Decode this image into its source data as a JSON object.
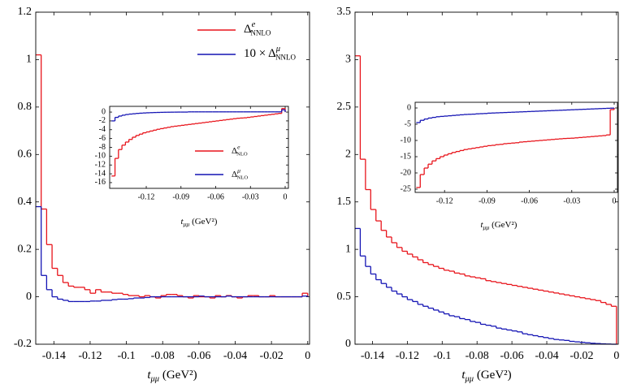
{
  "chart_data": [
    {
      "type": "histogram",
      "xlabel": "tμμ (GeV²)",
      "legend": "upper right",
      "xlim": [
        -0.15,
        0.001
      ],
      "ylim": [
        -0.2,
        1.2
      ],
      "xticks": [
        -0.14,
        -0.12,
        -0.1,
        -0.08,
        -0.06,
        -0.04,
        -0.02,
        0
      ],
      "yticks": [
        1.2,
        1,
        0.8,
        0.6,
        0.4,
        0.2,
        0,
        -0.2
      ],
      "bins": [
        -0.15,
        -0.147,
        -0.144,
        -0.141,
        -0.138,
        -0.135,
        -0.132,
        -0.129,
        -0.126,
        -0.123,
        -0.12,
        -0.117,
        -0.114,
        -0.111,
        -0.108,
        -0.105,
        -0.102,
        -0.099,
        -0.096,
        -0.093,
        -0.09,
        -0.087,
        -0.084,
        -0.081,
        -0.078,
        -0.075,
        -0.072,
        -0.069,
        -0.066,
        -0.063,
        -0.06,
        -0.057,
        -0.054,
        -0.051,
        -0.048,
        -0.045,
        -0.042,
        -0.039,
        -0.036,
        -0.033,
        -0.03,
        -0.027,
        -0.024,
        -0.021,
        -0.018,
        -0.015,
        -0.012,
        -0.009,
        -0.006,
        -0.003,
        0
      ],
      "series": [
        {
          "name": "ΔeNNLO",
          "color": "#e8141b",
          "values": [
            1.02,
            0.37,
            0.22,
            0.12,
            0.09,
            0.06,
            0.045,
            0.04,
            0.04,
            0.03,
            0.015,
            0.03,
            0.02,
            0.02,
            0.015,
            0.015,
            0.01,
            0.005,
            0.005,
            0,
            0.005,
            0,
            -0.005,
            0.005,
            0.01,
            0.01,
            0.005,
            0,
            -0.005,
            0.005,
            0,
            0,
            -0.005,
            0.005,
            0,
            0.005,
            0,
            -0.005,
            0,
            0.005,
            0.005,
            0,
            0,
            0.005,
            0,
            0,
            0,
            0,
            0,
            0.015
          ]
        },
        {
          "name": "10 × ΔμNNLO",
          "color": "#1414b4",
          "values": [
            0.38,
            0.09,
            0.03,
            0,
            -0.01,
            -0.015,
            -0.02,
            -0.02,
            -0.02,
            -0.02,
            -0.018,
            -0.018,
            -0.015,
            -0.015,
            -0.012,
            -0.01,
            -0.01,
            -0.008,
            -0.005,
            -0.005,
            -0.003,
            0,
            0,
            0,
            0,
            0,
            0,
            0,
            0,
            0,
            0.003,
            0,
            0,
            0,
            0,
            0.003,
            0,
            0,
            0,
            0,
            0,
            0,
            0,
            0,
            0,
            0,
            0,
            0,
            0,
            0.003
          ]
        }
      ]
    },
    {
      "type": "histogram",
      "xlabel": "tμμ (GeV²)",
      "legend": "lower right",
      "xlim": [
        -0.1516,
        0.0028
      ],
      "ylim": [
        -17.3,
        1.3
      ],
      "xticks": [
        -0.12,
        -0.09,
        -0.06,
        -0.03,
        0
      ],
      "yticks": [
        0,
        -2,
        -4,
        -6,
        -8,
        -10,
        -12,
        -14,
        -16
      ],
      "bins": [
        -0.15,
        -0.147,
        -0.144,
        -0.141,
        -0.138,
        -0.135,
        -0.132,
        -0.129,
        -0.126,
        -0.123,
        -0.12,
        -0.117,
        -0.114,
        -0.111,
        -0.108,
        -0.105,
        -0.102,
        -0.099,
        -0.096,
        -0.093,
        -0.09,
        -0.087,
        -0.084,
        -0.081,
        -0.078,
        -0.075,
        -0.072,
        -0.069,
        -0.066,
        -0.063,
        -0.06,
        -0.057,
        -0.054,
        -0.051,
        -0.048,
        -0.045,
        -0.042,
        -0.039,
        -0.036,
        -0.033,
        -0.03,
        -0.027,
        -0.024,
        -0.021,
        -0.018,
        -0.015,
        -0.012,
        -0.009,
        -0.006,
        -0.003,
        0
      ],
      "series": [
        {
          "name": "ΔeNLO",
          "color": "#e8141b",
          "values": [
            -14.5,
            -10.5,
            -8.5,
            -7.5,
            -6.8,
            -6.2,
            -5.7,
            -5.3,
            -5,
            -4.7,
            -4.5,
            -4.3,
            -4.1,
            -3.9,
            -3.75,
            -3.6,
            -3.45,
            -3.3,
            -3.2,
            -3.1,
            -3,
            -2.9,
            -2.8,
            -2.7,
            -2.6,
            -2.5,
            -2.4,
            -2.3,
            -2.2,
            -2.1,
            -2,
            -1.9,
            -1.8,
            -1.7,
            -1.6,
            -1.5,
            -1.4,
            -1.35,
            -1.3,
            -1.2,
            -1.1,
            -1,
            -0.9,
            -0.8,
            -0.7,
            -0.6,
            -0.5,
            -0.4,
            -0.3,
            0.8
          ]
        },
        {
          "name": "ΔμNLO",
          "color": "#1414b4",
          "values": [
            -2,
            -1.2,
            -0.9,
            -0.7,
            -0.55,
            -0.45,
            -0.38,
            -0.3,
            -0.25,
            -0.2,
            -0.16,
            -0.13,
            -0.1,
            -0.08,
            -0.06,
            -0.04,
            -0.03,
            -0.02,
            -0.01,
            0,
            0,
            0,
            0.05,
            0.05,
            0.05,
            0.05,
            0.05,
            0.05,
            0.05,
            0.05,
            0.05,
            0.05,
            0.05,
            0.05,
            0.05,
            0.05,
            0.05,
            0.05,
            0.05,
            0.05,
            0.05,
            0.05,
            0.05,
            0.05,
            0.05,
            0.05,
            0.05,
            0.05,
            0.05,
            0.5
          ]
        }
      ]
    },
    {
      "type": "histogram",
      "xlabel": "tμμ (GeV²)",
      "xlim": [
        -0.15,
        0.001
      ],
      "ylim": [
        0,
        3.5
      ],
      "xticks": [
        -0.14,
        -0.12,
        -0.1,
        -0.08,
        -0.06,
        -0.04,
        -0.02,
        0
      ],
      "yticks": [
        3.5,
        3,
        2.5,
        2,
        1.5,
        1,
        0.5,
        0
      ],
      "bins": [
        -0.15,
        -0.147,
        -0.144,
        -0.141,
        -0.138,
        -0.135,
        -0.132,
        -0.129,
        -0.126,
        -0.123,
        -0.12,
        -0.117,
        -0.114,
        -0.111,
        -0.108,
        -0.105,
        -0.102,
        -0.099,
        -0.096,
        -0.093,
        -0.09,
        -0.087,
        -0.084,
        -0.081,
        -0.078,
        -0.075,
        -0.072,
        -0.069,
        -0.066,
        -0.063,
        -0.06,
        -0.057,
        -0.054,
        -0.051,
        -0.048,
        -0.045,
        -0.042,
        -0.039,
        -0.036,
        -0.033,
        -0.03,
        -0.027,
        -0.024,
        -0.021,
        -0.018,
        -0.015,
        -0.012,
        -0.009,
        -0.006,
        -0.003,
        0
      ],
      "series": [
        {
          "color": "#e8141b",
          "values": [
            3.04,
            1.95,
            1.63,
            1.42,
            1.3,
            1.2,
            1.13,
            1.07,
            1.02,
            0.98,
            0.95,
            0.92,
            0.89,
            0.86,
            0.84,
            0.82,
            0.8,
            0.78,
            0.77,
            0.75,
            0.74,
            0.72,
            0.71,
            0.7,
            0.69,
            0.67,
            0.66,
            0.65,
            0.64,
            0.63,
            0.62,
            0.61,
            0.6,
            0.59,
            0.58,
            0.57,
            0.56,
            0.55,
            0.54,
            0.53,
            0.52,
            0.51,
            0.5,
            0.49,
            0.48,
            0.47,
            0.46,
            0.44,
            0.42,
            0.4
          ]
        },
        {
          "color": "#1414b4",
          "values": [
            1.22,
            0.93,
            0.82,
            0.74,
            0.68,
            0.64,
            0.6,
            0.56,
            0.53,
            0.5,
            0.47,
            0.45,
            0.42,
            0.4,
            0.38,
            0.36,
            0.34,
            0.32,
            0.3,
            0.29,
            0.27,
            0.26,
            0.24,
            0.23,
            0.21,
            0.2,
            0.19,
            0.17,
            0.16,
            0.15,
            0.14,
            0.13,
            0.11,
            0.1,
            0.09,
            0.08,
            0.07,
            0.06,
            0.05,
            0.045,
            0.04,
            0.03,
            0.025,
            0.02,
            0.015,
            0.01,
            0.007,
            0.004,
            0.002,
            0
          ]
        }
      ]
    },
    {
      "type": "histogram",
      "xlabel": "tμμ (GeV²)",
      "xlim": [
        -0.1408,
        0.0023
      ],
      "ylim": [
        -26,
        1.75
      ],
      "xticks": [
        -0.12,
        -0.09,
        -0.06,
        -0.03,
        0
      ],
      "yticks": [
        0,
        -5,
        -10,
        -15,
        -20,
        -25
      ],
      "bins": [
        -0.14,
        -0.1372,
        -0.1344,
        -0.1316,
        -0.1288,
        -0.126,
        -0.1232,
        -0.1204,
        -0.1176,
        -0.1148,
        -0.112,
        -0.1092,
        -0.1064,
        -0.1036,
        -0.1008,
        -0.098,
        -0.0952,
        -0.0924,
        -0.0896,
        -0.0868,
        -0.084,
        -0.0812,
        -0.0784,
        -0.0756,
        -0.0728,
        -0.07,
        -0.0672,
        -0.0644,
        -0.0616,
        -0.0588,
        -0.056,
        -0.0532,
        -0.0504,
        -0.0476,
        -0.0448,
        -0.042,
        -0.0392,
        -0.0364,
        -0.0336,
        -0.0308,
        -0.028,
        -0.0252,
        -0.0224,
        -0.0196,
        -0.0168,
        -0.014,
        -0.0112,
        -0.0084,
        -0.0056,
        -0.0028,
        0
      ],
      "series": [
        {
          "color": "#e8141b",
          "values": [
            -24.5,
            -20.5,
            -18.5,
            -17.3,
            -16.3,
            -15.6,
            -15,
            -14.5,
            -14.1,
            -13.7,
            -13.4,
            -13.1,
            -12.8,
            -12.6,
            -12.4,
            -12.2,
            -12,
            -11.8,
            -11.6,
            -11.5,
            -11.3,
            -11.2,
            -11,
            -10.9,
            -10.8,
            -10.7,
            -10.5,
            -10.4,
            -10.3,
            -10.2,
            -10.1,
            -10,
            -9.9,
            -9.8,
            -9.7,
            -9.6,
            -9.5,
            -9.4,
            -9.35,
            -9.3,
            -9.2,
            -9.1,
            -9,
            -8.9,
            -8.8,
            -8.7,
            -8.6,
            -8.5,
            -8.3,
            -0.5
          ]
        },
        {
          "color": "#1414b4",
          "values": [
            -4.5,
            -3.8,
            -3.4,
            -3.1,
            -2.9,
            -2.7,
            -2.6,
            -2.5,
            -2.4,
            -2.3,
            -2.2,
            -2.1,
            -2,
            -1.95,
            -1.9,
            -1.8,
            -1.75,
            -1.7,
            -1.6,
            -1.55,
            -1.5,
            -1.45,
            -1.4,
            -1.35,
            -1.3,
            -1.25,
            -1.2,
            -1.15,
            -1.1,
            -1.05,
            -1,
            -0.95,
            -0.9,
            -0.85,
            -0.8,
            -0.75,
            -0.7,
            -0.65,
            -0.6,
            -0.55,
            -0.5,
            -0.45,
            -0.4,
            -0.35,
            -0.3,
            -0.25,
            -0.2,
            -0.15,
            -0.1,
            -0.05
          ]
        }
      ]
    }
  ]
}
